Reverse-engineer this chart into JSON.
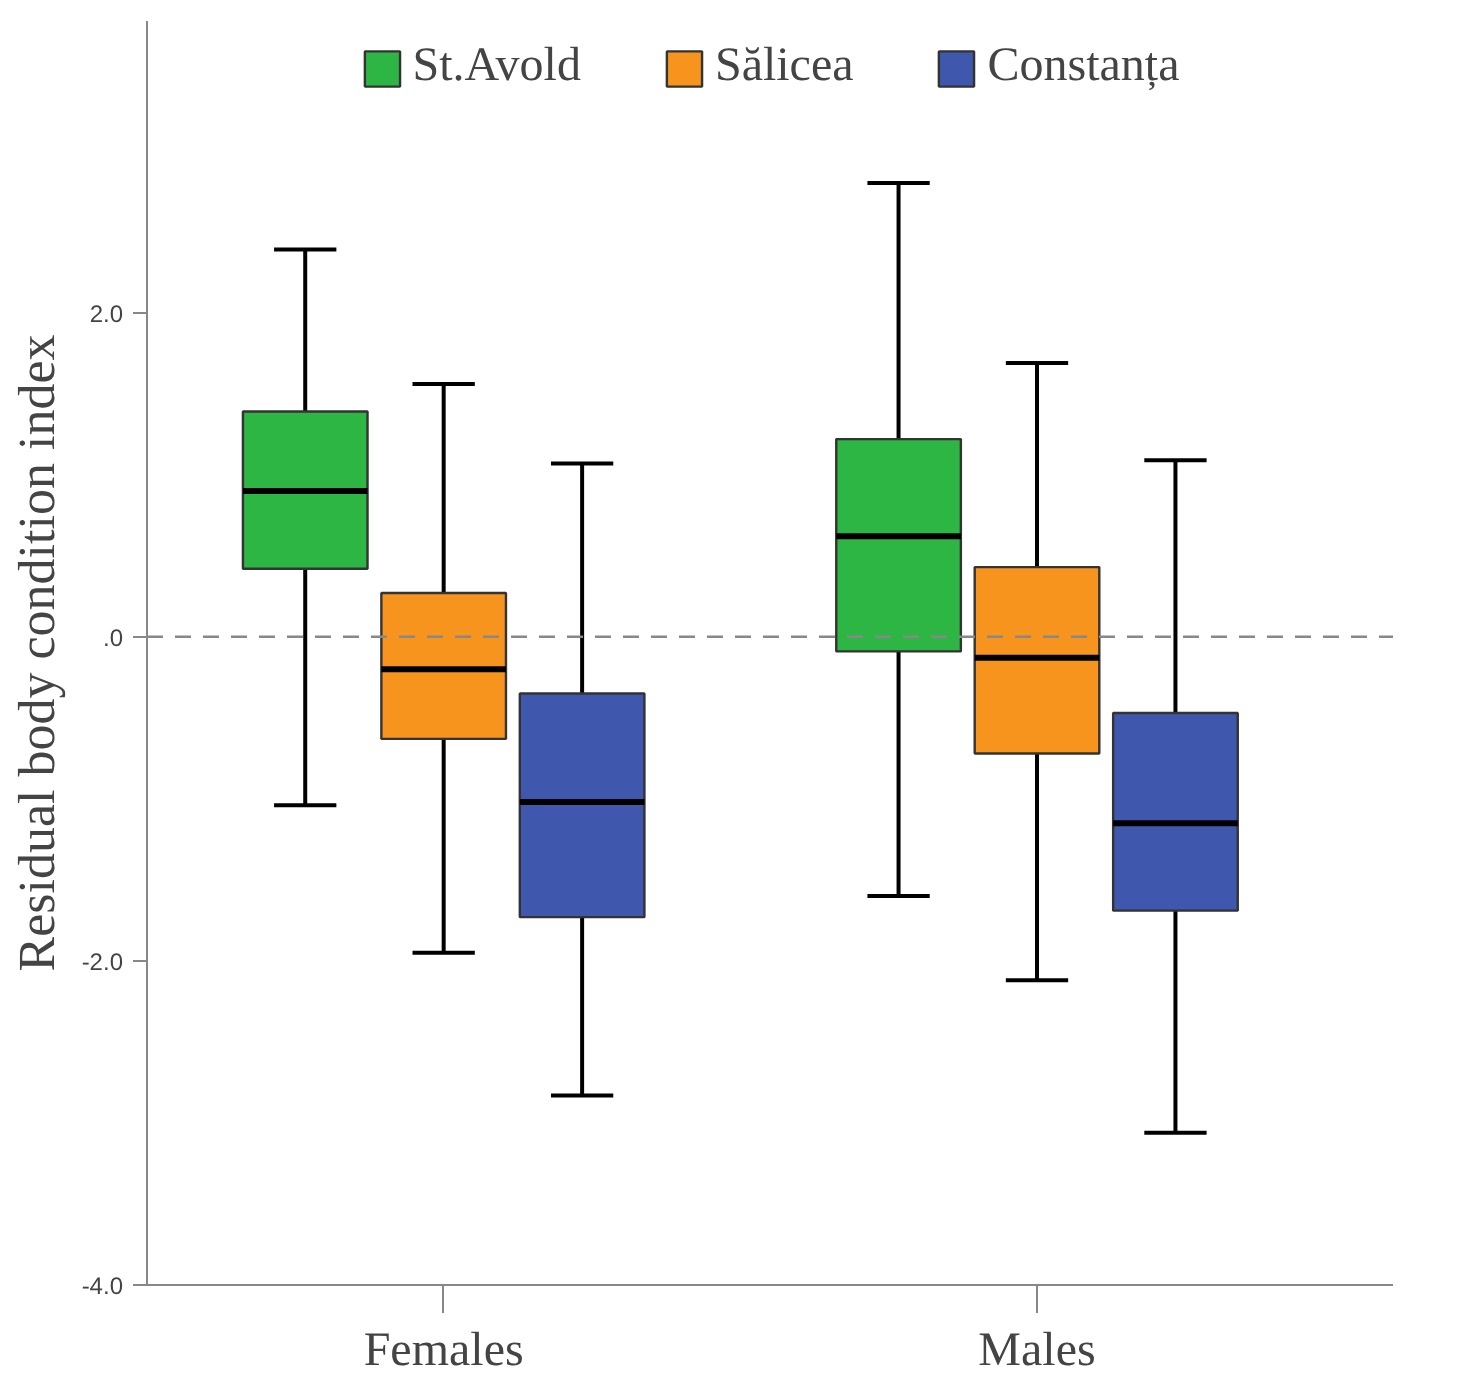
{
  "chart_data": {
    "type": "box",
    "ylabel": "Residual body condition index",
    "categories": [
      "Females",
      "Males"
    ],
    "series": [
      {
        "name": "St.Avold",
        "color": "#2db643",
        "boxes": [
          {
            "low": -1.04,
            "q1": 0.42,
            "median": 0.9,
            "q3": 1.39,
            "high": 2.39
          },
          {
            "low": -1.6,
            "q1": -0.09,
            "median": 0.62,
            "q3": 1.22,
            "high": 2.8
          }
        ]
      },
      {
        "name": "Sălicea",
        "color": "#f7941d",
        "boxes": [
          {
            "low": -1.95,
            "q1": -0.63,
            "median": -0.2,
            "q3": 0.27,
            "high": 1.56
          },
          {
            "low": -2.12,
            "q1": -0.72,
            "median": -0.13,
            "q3": 0.43,
            "high": 1.69
          }
        ]
      },
      {
        "name": "Constanța",
        "color": "#3f57ad",
        "boxes": [
          {
            "low": -2.83,
            "q1": -1.73,
            "median": -1.02,
            "q3": -0.35,
            "high": 1.07
          },
          {
            "low": -3.06,
            "q1": -1.69,
            "median": -1.15,
            "q3": -0.47,
            "high": 1.09
          }
        ]
      }
    ],
    "ylim": [
      -4.0,
      3.8
    ],
    "yticks": [
      {
        "value": -4,
        "label": "-4.0"
      },
      {
        "value": -2,
        "label": "-2.0"
      },
      {
        "value": 0,
        "label": ".0"
      },
      {
        "value": 2,
        "label": "2.0"
      }
    ],
    "ref_lines": [
      {
        "axis": "y",
        "value": 0,
        "color": "#888888",
        "line_style": "dashed"
      }
    ],
    "grid": false,
    "legend": "top"
  }
}
